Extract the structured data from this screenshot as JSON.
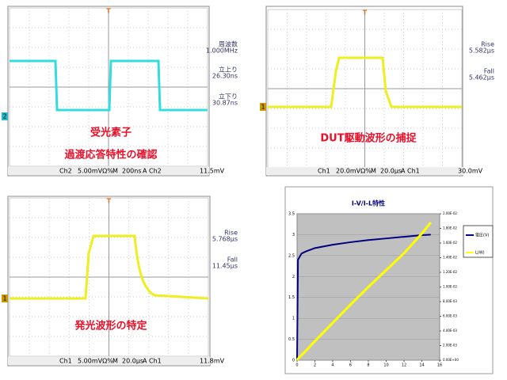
{
  "scopes": [
    {
      "readouts": [
        "周波数",
        "1.000MHz",
        "立上り",
        "26.30ns",
        "立下り",
        "30.87ns"
      ],
      "captions": [
        "受光素子",
        "過渡応答特性の確認"
      ],
      "status": [
        "Ch2",
        "5.00mVΩ%",
        "M",
        "200ns",
        "A",
        "Ch2",
        "11.5mV"
      ],
      "channel": "2"
    },
    {
      "readouts": [
        "Rise",
        "5.582µs",
        "Fall",
        "5.462µs"
      ],
      "captions": [
        "DUT駆動波形の捕捉"
      ],
      "status": [
        "Ch1",
        "20.0mVΩ%",
        "M",
        "20.0µs",
        "A",
        "Ch1",
        "30.0mV"
      ],
      "channel": "1"
    },
    {
      "readouts": [
        "Rise",
        "5.768µs",
        "Fall",
        "11.45µs"
      ],
      "captions": [
        "発光波形の特定"
      ],
      "status": [
        "Ch1",
        "5.00mVΩ%",
        "M",
        "20.0µs",
        "A",
        "Ch1",
        "11.8mV"
      ],
      "channel": "1"
    }
  ],
  "chart_data": {
    "type": "line",
    "title": "I-V/I-L特性",
    "x": [
      0,
      0.1,
      0.5,
      1,
      2,
      4,
      6,
      8,
      10,
      12,
      14,
      15
    ],
    "series": [
      {
        "name": "電圧(V)",
        "color": "#000080",
        "values": [
          0,
          2.4,
          2.55,
          2.6,
          2.68,
          2.76,
          2.82,
          2.87,
          2.91,
          2.95,
          2.99,
          3.0
        ]
      },
      {
        "name": "L(W)",
        "color": "#ffff00",
        "axis": "y2",
        "values": [
          0,
          0.0002,
          0.0007,
          0.0013,
          0.0026,
          0.0051,
          0.0076,
          0.01,
          0.0123,
          0.0146,
          0.0173,
          0.0188
        ]
      }
    ],
    "xlim": [
      0,
      16
    ],
    "xticks": [
      0,
      2,
      4,
      6,
      8,
      10,
      12,
      14,
      16
    ],
    "ylim": [
      0,
      3.5
    ],
    "yticks": [
      0,
      0.5,
      1,
      1.5,
      2,
      2.5,
      3,
      3.5
    ],
    "y2lim": [
      0,
      0.02
    ],
    "y2ticks": [
      {
        "value": 0,
        "label": "0.00E+00"
      },
      {
        "value": 0.002,
        "label": "2.00E-03"
      },
      {
        "value": 0.004,
        "label": "4.00E-03"
      },
      {
        "value": 0.006,
        "label": "6.00E-03"
      },
      {
        "value": 0.008,
        "label": "8.00E-03"
      },
      {
        "value": 0.01,
        "label": "1.00E-02"
      },
      {
        "value": 0.012,
        "label": "1.20E-02"
      },
      {
        "value": 0.014,
        "label": "1.40E-02"
      },
      {
        "value": 0.016,
        "label": "1.60E-02"
      },
      {
        "value": 0.018,
        "label": "1.80E-02"
      },
      {
        "value": 0.02,
        "label": "2.00E-02"
      }
    ],
    "legend": "right"
  }
}
